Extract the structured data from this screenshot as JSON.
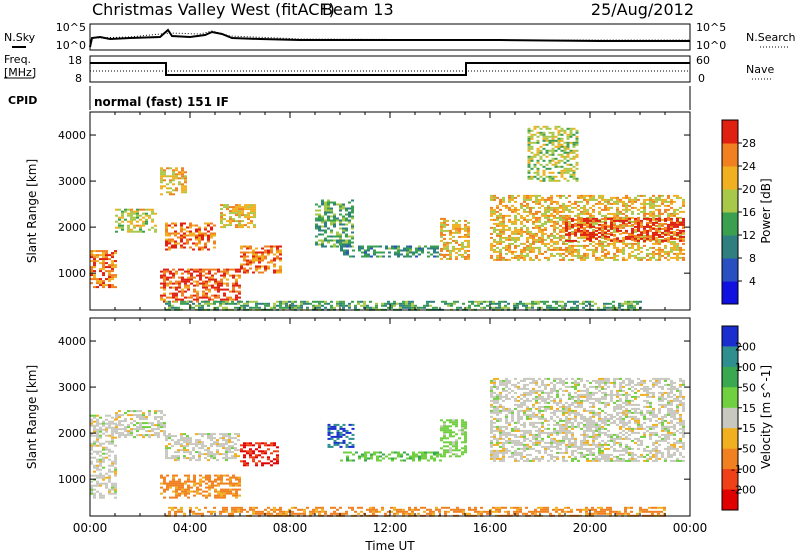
{
  "header": {
    "title": "Christmas Valley West (fitACF)",
    "beam": "Beam 13",
    "date": "25/Aug/2012"
  },
  "panels": {
    "nsky": {
      "label": "N.Sky",
      "tick_top": "10^5",
      "tick_bottom": "10^0"
    },
    "nsearch": {
      "label": "N.Search",
      "tick_top": "10^5",
      "tick_bottom": "10^0"
    },
    "freq": {
      "label_line1": "Freq.",
      "label_line2": "[MHz]",
      "tick_top": "18",
      "tick_bottom": "8"
    },
    "nave": {
      "label": "Nave",
      "tick_top": "60",
      "tick_bottom": "0"
    },
    "cpid": {
      "label": "CPID",
      "value": "normal (fast) 151 IF"
    }
  },
  "chart_data": [
    {
      "type": "heatmap",
      "title": "",
      "ylabel": "Slant Range [km]",
      "xlabel": "",
      "ylim": [
        200,
        4500
      ],
      "yticks": [
        "1000",
        "2000",
        "3000",
        "4000"
      ],
      "colorbar": {
        "label": "Power [dB]",
        "ticks": [
          "4",
          "8",
          "12",
          "16",
          "20",
          "24",
          "28"
        ],
        "colors": [
          "#1010e0",
          "#2a4fc0",
          "#2f7f7f",
          "#3aa050",
          "#a8c84a",
          "#f0b020",
          "#f08020",
          "#e02010"
        ]
      },
      "echo_regions": [
        {
          "t": [
            0.0,
            1.0
          ],
          "range": [
            700,
            1500
          ],
          "db": 24
        },
        {
          "t": [
            1.0,
            2.6
          ],
          "range": [
            1900,
            2400
          ],
          "db": 18
        },
        {
          "t": [
            2.8,
            3.8
          ],
          "range": [
            2700,
            3300
          ],
          "db": 20
        },
        {
          "t": [
            3.0,
            5.0
          ],
          "range": [
            1500,
            2100
          ],
          "db": 24
        },
        {
          "t": [
            5.2,
            6.6
          ],
          "range": [
            2000,
            2500
          ],
          "db": 20
        },
        {
          "t": [
            2.8,
            6.0
          ],
          "range": [
            400,
            1100
          ],
          "db": 26
        },
        {
          "t": [
            6.0,
            7.6
          ],
          "range": [
            1000,
            1600
          ],
          "db": 24
        },
        {
          "t": [
            9.0,
            10.5
          ],
          "range": [
            1600,
            2600
          ],
          "db": 12
        },
        {
          "t": [
            10.0,
            14.0
          ],
          "range": [
            1350,
            1600
          ],
          "db": 10
        },
        {
          "t": [
            14.0,
            15.2
          ],
          "range": [
            1300,
            2200
          ],
          "db": 20
        },
        {
          "t": [
            16.0,
            23.8
          ],
          "range": [
            1300,
            2700
          ],
          "db": 20
        },
        {
          "t": [
            19.0,
            23.8
          ],
          "range": [
            1700,
            2200
          ],
          "db": 28
        },
        {
          "t": [
            17.5,
            19.5
          ],
          "range": [
            3000,
            4200
          ],
          "db": 16
        },
        {
          "t": [
            3.0,
            22.0
          ],
          "range": [
            200,
            400
          ],
          "db": 12
        }
      ]
    },
    {
      "type": "heatmap",
      "title": "",
      "ylabel": "Slant Range [km]",
      "xlabel": "Time UT",
      "ylim": [
        200,
        4500
      ],
      "yticks": [
        "1000",
        "2000",
        "3000",
        "4000"
      ],
      "xticks": [
        "00:00",
        "04:00",
        "08:00",
        "12:00",
        "16:00",
        "20:00",
        "00:00"
      ],
      "colorbar": {
        "label": "Velocity [m s^-1]",
        "ticks": [
          "200",
          "100",
          "50",
          "15",
          "-15",
          "-50",
          "-100",
          "-200"
        ],
        "colors": [
          "#1a2ed0",
          "#2f8f8f",
          "#3aa850",
          "#70d040",
          "#c8c8c0",
          "#f0b020",
          "#f08020",
          "#f04018",
          "#e00000"
        ]
      },
      "echo_regions": [
        {
          "t": [
            0.0,
            1.0
          ],
          "range": [
            600,
            2400
          ],
          "vel": 0
        },
        {
          "t": [
            1.0,
            3.0
          ],
          "range": [
            1900,
            2500
          ],
          "vel": 0
        },
        {
          "t": [
            2.8,
            6.0
          ],
          "range": [
            600,
            1100
          ],
          "vel": -60
        },
        {
          "t": [
            3.0,
            6.0
          ],
          "range": [
            1400,
            2000
          ],
          "vel": 0
        },
        {
          "t": [
            6.0,
            7.5
          ],
          "range": [
            1300,
            1800
          ],
          "vel": -200
        },
        {
          "t": [
            9.5,
            10.5
          ],
          "range": [
            1700,
            2200
          ],
          "vel": 200
        },
        {
          "t": [
            10.0,
            14.0
          ],
          "range": [
            1400,
            1600
          ],
          "vel": 40
        },
        {
          "t": [
            14.0,
            15.0
          ],
          "range": [
            1500,
            2300
          ],
          "vel": 30
        },
        {
          "t": [
            16.0,
            23.8
          ],
          "range": [
            1400,
            3200
          ],
          "vel": 0
        },
        {
          "t": [
            3.0,
            23.0
          ],
          "range": [
            200,
            400
          ],
          "vel": -60
        }
      ]
    }
  ]
}
